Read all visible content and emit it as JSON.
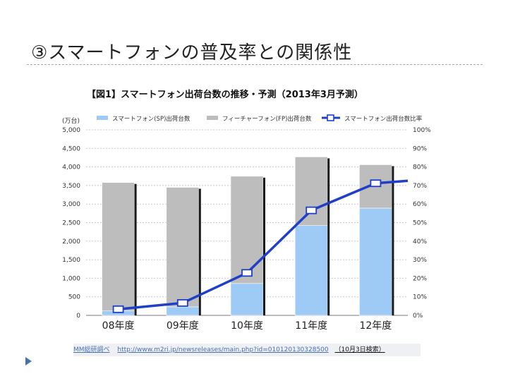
{
  "slide": {
    "title": "③スマートフォンの普及率との関係性"
  },
  "chart_data": {
    "type": "bar",
    "title": "【図1】スマートフォン出荷台数の推移・予測（2013年3月予測）",
    "y_unit_label": "(万台)",
    "categories": [
      "08年度",
      "09年度",
      "10年度",
      "11年度",
      "12年度"
    ],
    "series": [
      {
        "name": "スマートフォン(SP)出荷台数",
        "kind": "bar",
        "stack": "main",
        "axis": "left",
        "color": "#9ecbf5",
        "values": [
          120,
          230,
          860,
          2420,
          2890
        ]
      },
      {
        "name": "フィーチャーフォン(FP)出荷台数",
        "kind": "bar",
        "stack": "main",
        "axis": "left",
        "color": "#bdbdbd",
        "values": [
          3460,
          3220,
          2890,
          1850,
          1170
        ]
      },
      {
        "name": "スマートフォン出荷台数比率",
        "kind": "line",
        "axis": "right",
        "color": "#1f3fc8",
        "values": [
          3.3,
          6.7,
          22.9,
          56.6,
          71.2
        ]
      }
    ],
    "y_left": {
      "min": 0,
      "max": 5000,
      "ticks": [
        0,
        500,
        1000,
        1500,
        2000,
        2500,
        3000,
        3500,
        4000,
        4500,
        5000
      ],
      "tick_labels": [
        "0",
        "500",
        "1,000",
        "1,500",
        "2,000",
        "2,500",
        "3,000",
        "3,500",
        "4,000",
        "4,500",
        "5,000"
      ]
    },
    "y_right": {
      "min": 0,
      "max": 100,
      "ticks": [
        0,
        10,
        20,
        30,
        40,
        50,
        60,
        70,
        80,
        90,
        100
      ],
      "tick_labels": [
        "0%",
        "10%",
        "20%",
        "30%",
        "40%",
        "50%",
        "60%",
        "70%",
        "80%",
        "90%",
        "100%"
      ]
    },
    "grid": true,
    "legend": "top"
  },
  "source": {
    "name": "MM総研調べ",
    "url": "http://www.m2ri.jp/newsreleases/main.php?id=010120130328500",
    "date": "（10月3日検索）"
  },
  "colors": {
    "bullet": "#4a72a8",
    "rule": "#9aa8b8"
  }
}
